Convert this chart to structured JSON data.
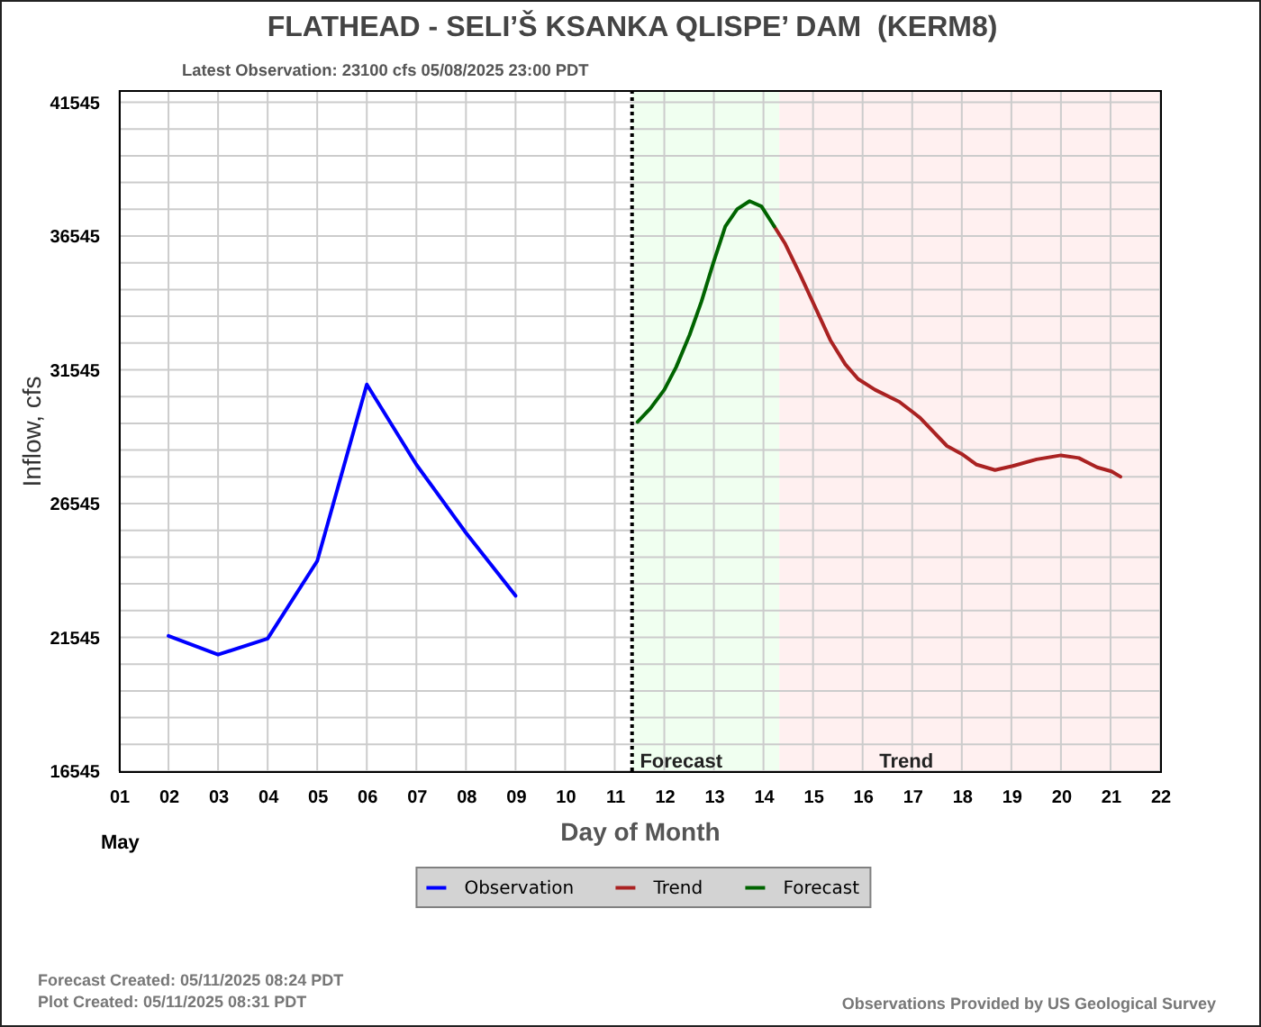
{
  "chart_data": {
    "type": "line",
    "title": "FLATHEAD - SELI’Š KSANKA QLISPE’ DAM  (KERM8)",
    "subtitle": "Latest Observation: 23100 cfs 05/08/2025 23:00 PDT",
    "xlabel": "Day of Month",
    "ylabel": "Inflow, cfs",
    "xlim": [
      1,
      22
    ],
    "xticks": [
      {
        "value": 1,
        "label": "01"
      },
      {
        "value": 2,
        "label": "02"
      },
      {
        "value": 3,
        "label": "03"
      },
      {
        "value": 4,
        "label": "04"
      },
      {
        "value": 5,
        "label": "05"
      },
      {
        "value": 6,
        "label": "06"
      },
      {
        "value": 7,
        "label": "07"
      },
      {
        "value": 8,
        "label": "08"
      },
      {
        "value": 9,
        "label": "09"
      },
      10,
      11,
      12,
      13,
      14,
      15,
      16,
      17,
      18,
      19,
      20,
      21,
      22
    ],
    "ylim": [
      16545,
      42000
    ],
    "yticks": [
      16545,
      {
        "value": 17545,
        "label": null
      },
      {
        "value": 18545,
        "label": null
      },
      {
        "value": 19545,
        "label": null
      },
      {
        "value": 20545,
        "label": null
      },
      21545,
      {
        "value": 22545,
        "label": null
      },
      {
        "value": 23545,
        "label": null
      },
      {
        "value": 24545,
        "label": null
      },
      {
        "value": 25545,
        "label": null
      },
      26545,
      {
        "value": 27545,
        "label": null
      },
      {
        "value": 28545,
        "label": null
      },
      {
        "value": 29545,
        "label": null
      },
      {
        "value": 30545,
        "label": null
      },
      31545,
      {
        "value": 32545,
        "label": null
      },
      {
        "value": 33545,
        "label": null
      },
      {
        "value": 34545,
        "label": null
      },
      {
        "value": 35545,
        "label": null
      },
      36545,
      {
        "value": 37545,
        "label": null
      },
      {
        "value": 38545,
        "label": null
      },
      {
        "value": 39545,
        "label": null
      },
      {
        "value": 40545,
        "label": null
      },
      41545
    ],
    "series": [
      {
        "name": "Observation",
        "color": "#0000ff",
        "x": [
          2,
          3,
          4,
          5,
          6,
          7,
          8,
          9
        ],
        "values": [
          21600,
          20900,
          21500,
          24400,
          31000,
          28000,
          25450,
          23100
        ]
      },
      {
        "name": "Trend",
        "color": "#aa2222",
        "x": [
          14.22,
          14.44,
          14.74,
          15.04,
          15.35,
          15.65,
          15.91,
          16.25,
          16.74,
          17.16,
          17.7,
          18.0,
          18.3,
          18.67,
          19.03,
          19.51,
          20.0,
          20.36,
          20.73,
          21.02,
          21.2
        ],
        "values": [
          36900,
          36250,
          35100,
          33900,
          32650,
          31750,
          31200,
          30800,
          30350,
          29750,
          28700,
          28400,
          28000,
          27800,
          27950,
          28200,
          28350,
          28250,
          27900,
          27750,
          27550
        ]
      },
      {
        "name": "Forecast",
        "color": "#006400",
        "x": [
          11.46,
          11.72,
          12.0,
          12.24,
          12.51,
          12.75,
          12.99,
          13.23,
          13.47,
          13.72,
          13.96,
          14.22
        ],
        "values": [
          29600,
          30100,
          30800,
          31650,
          32850,
          34100,
          35550,
          36900,
          37550,
          37850,
          37650,
          36900
        ]
      }
    ],
    "ref_lines": [
      {
        "axis": "x",
        "value": 11.35,
        "line_style": "dotted",
        "color": "#000000"
      }
    ],
    "bands": [
      {
        "axis": "x",
        "from": 11.35,
        "to": 14.32,
        "label": "Forecast",
        "color": "#f0fff0"
      },
      {
        "axis": "x",
        "from": 14.32,
        "to": 22,
        "label": "Trend",
        "color": "#fff0f0"
      }
    ],
    "annotations": [
      "May",
      "Forecast Created: 05/11/2025 08:24 PDT",
      "Plot Created: 05/11/2025 08:31 PDT",
      "Observations Provided by US Geological Survey"
    ],
    "grid": true,
    "legend": "bottom"
  }
}
